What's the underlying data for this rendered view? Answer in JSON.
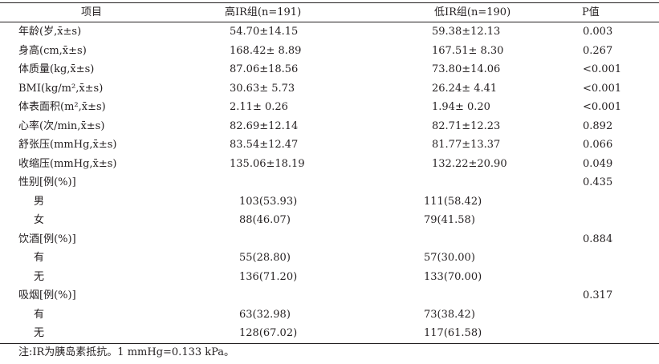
{
  "table": {
    "headers": {
      "item": "项目",
      "high": "高IR组(n=191)",
      "low": "低IR组(n=190)",
      "p": "P值"
    },
    "rows": [
      {
        "item": "年龄(岁,x̄±s)",
        "high": "54.70±14.15",
        "low": "59.38±12.13",
        "p": "0.003",
        "sub": false,
        "count": false
      },
      {
        "item": "身高(cm,x̄±s)",
        "high": "168.42± 8.89",
        "low": "167.51± 8.30",
        "p": "0.267",
        "sub": false,
        "count": false
      },
      {
        "item": "体质量(kg,x̄±s)",
        "high": "87.06±18.56",
        "low": "73.80±14.06",
        "p": "<0.001",
        "sub": false,
        "count": false
      },
      {
        "item": "BMI(kg/m²,x̄±s)",
        "high": "30.63± 5.73",
        "low": "26.24± 4.41",
        "p": "<0.001",
        "sub": false,
        "count": false
      },
      {
        "item": "体表面积(m²,x̄±s)",
        "high": "2.11± 0.26",
        "low": "1.94± 0.20",
        "p": "<0.001",
        "sub": false,
        "count": false
      },
      {
        "item": "心率(次/min,x̄±s)",
        "high": "82.69±12.14",
        "low": "82.71±12.23",
        "p": "0.892",
        "sub": false,
        "count": false
      },
      {
        "item": "舒张压(mmHg,x̄±s)",
        "high": "83.54±12.47",
        "low": "81.77±13.37",
        "p": "0.066",
        "sub": false,
        "count": false
      },
      {
        "item": "收缩压(mmHg,x̄±s)",
        "high": "135.06±18.19",
        "low": "132.22±20.90",
        "p": "0.049",
        "sub": false,
        "count": false
      },
      {
        "item": "性别[例(%)]",
        "high": "",
        "low": "",
        "p": "0.435",
        "sub": false,
        "count": false
      },
      {
        "item": "男",
        "high": "103(53.93)",
        "low": "111(58.42)",
        "p": "",
        "sub": true,
        "count": true
      },
      {
        "item": "女",
        "high": "88(46.07)",
        "low": "79(41.58)",
        "p": "",
        "sub": true,
        "count": true
      },
      {
        "item": "饮酒[例(%)]",
        "high": "",
        "low": "",
        "p": "0.884",
        "sub": false,
        "count": false
      },
      {
        "item": "有",
        "high": "55(28.80)",
        "low": "57(30.00)",
        "p": "",
        "sub": true,
        "count": true
      },
      {
        "item": "无",
        "high": "136(71.20)",
        "low": "133(70.00)",
        "p": "",
        "sub": true,
        "count": true
      },
      {
        "item": "吸烟[例(%)]",
        "high": "",
        "low": "",
        "p": "0.317",
        "sub": false,
        "count": false
      },
      {
        "item": "有",
        "high": "63(32.98)",
        "low": "73(38.42)",
        "p": "",
        "sub": true,
        "count": true
      },
      {
        "item": "无",
        "high": "128(67.02)",
        "low": "117(61.58)",
        "p": "",
        "sub": true,
        "count": true
      }
    ]
  },
  "note": "注:IR为胰岛素抵抗。1 mmHg=0.133 kPa。"
}
